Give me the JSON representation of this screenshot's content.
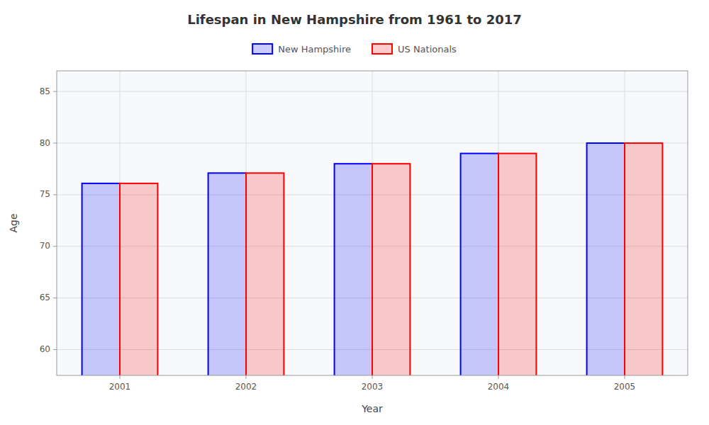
{
  "chart_data": {
    "type": "bar",
    "title": "Lifespan in New Hampshire from 1961 to 2017",
    "xlabel": "Year",
    "ylabel": "Age",
    "categories": [
      "2001",
      "2002",
      "2003",
      "2004",
      "2005"
    ],
    "series": [
      {
        "name": "New Hampshire",
        "color": "#0000ff",
        "values": [
          76.1,
          77.1,
          78.0,
          79.0,
          80.0
        ]
      },
      {
        "name": "US Nationals",
        "color": "#ff0000",
        "values": [
          76.1,
          77.1,
          78.0,
          79.0,
          80.0
        ]
      }
    ],
    "ylim": [
      57.5,
      87
    ],
    "yticks": [
      60,
      65,
      70,
      75,
      80,
      85
    ],
    "grid": true,
    "legend": "top"
  }
}
